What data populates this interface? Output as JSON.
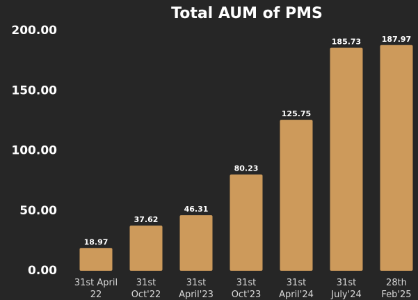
{
  "chart_data": {
    "type": "bar",
    "title": "Total AUM of PMS",
    "categories": [
      "31st April\n22",
      "31st\nOct'22",
      "31st\nApril'23",
      "31st\nOct'23",
      "31st\nApril'24",
      "31st\nJuly'24",
      "28th\nFeb'25"
    ],
    "values": [
      18.97,
      37.62,
      46.31,
      80.23,
      125.75,
      185.73,
      187.97
    ],
    "color": "#cd9a5b",
    "ylim": [
      0,
      200
    ],
    "yticks": [
      {
        "value": 0,
        "label": "0.00"
      },
      {
        "value": 50,
        "label": "50.00"
      },
      {
        "value": 100,
        "label": "100.00"
      },
      {
        "value": 150,
        "label": "150.00"
      },
      {
        "value": 200,
        "label": "200.00"
      }
    ],
    "grid": false
  }
}
